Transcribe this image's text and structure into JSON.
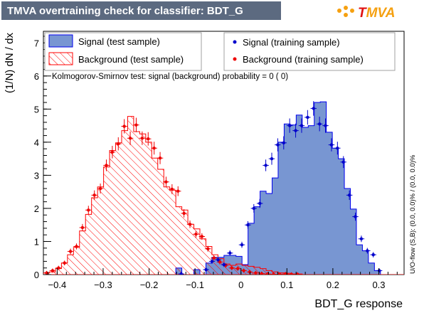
{
  "title": "TMVA overtraining check for classifier: BDT_G",
  "logo": {
    "text": "TMVA"
  },
  "overflow_note": "U/O-flow (S,B): (0.0, 0.0)% / (0.0, 0.0)%",
  "ks_text": "Kolmogorov-Smirnov test: signal (background) probability =     0 (    0)",
  "legend": {
    "signal_test": "Signal (test sample)",
    "background_test": "Background (test sample)",
    "signal_train": "Signal (training sample)",
    "background_train": "Background (training sample)"
  },
  "colors": {
    "signal_fill": "#7896d2",
    "signal_line": "#0000ee",
    "background_hatch": "#ff0000",
    "background_points": "#ee0000",
    "signal_points": "#0000cc",
    "title_bg": "#5c6a80"
  },
  "chart_data": {
    "type": "histogram",
    "title": "TMVA overtraining check for classifier: BDT_G",
    "xlabel": "BDT_G response",
    "ylabel": "(1/N) dN / dx",
    "xlim": [
      -0.43,
      0.355
    ],
    "ylim": [
      0,
      7.35
    ],
    "xticks": [
      -0.4,
      -0.3,
      -0.2,
      -0.1,
      0,
      0.1,
      0.2,
      0.3
    ],
    "xtick_labels": [
      "−0.4",
      "−0.3",
      "−0.2",
      "−0.1",
      "0",
      "0.1",
      "0.2",
      "0.3"
    ],
    "yticks": [
      0,
      1,
      2,
      3,
      4,
      5,
      6,
      7
    ],
    "ytick_labels": [
      "0",
      "1",
      "2",
      "3",
      "4",
      "5",
      "6",
      "7"
    ],
    "bin_edges_start": -0.43,
    "bin_width": 0.0131,
    "series": [
      {
        "name": "Signal (test sample)",
        "kind": "filled-histogram",
        "values": [
          0,
          0,
          0,
          0,
          0,
          0,
          0,
          0,
          0,
          0,
          0,
          0,
          0,
          0,
          0,
          0,
          0,
          0,
          0,
          0,
          0,
          0,
          0.2,
          0,
          0,
          0.15,
          0,
          0.35,
          0.52,
          0.52,
          0.58,
          0.58,
          0.55,
          0.3,
          1.55,
          2.05,
          2.52,
          2.45,
          2.92,
          4.0,
          4.55,
          4.52,
          4.82,
          4.45,
          4.5,
          5.2,
          5.22,
          4.3,
          3.82,
          3.5,
          2.6,
          1.98,
          0.9,
          0.72,
          0.35,
          0.12,
          0,
          0,
          0,
          0
        ]
      },
      {
        "name": "Background (test sample)",
        "kind": "hatched-histogram",
        "values": [
          0.05,
          0.08,
          0.18,
          0.35,
          0.6,
          0.82,
          1.32,
          1.82,
          2.32,
          2.65,
          3.25,
          3.75,
          3.98,
          4.35,
          4.78,
          4.32,
          4.25,
          4.0,
          3.52,
          3.18,
          2.65,
          2.55,
          2.05,
          1.95,
          1.52,
          1.38,
          1.08,
          0.85,
          0.6,
          0.48,
          0.32,
          0.28,
          0.32,
          0.28,
          0.25,
          0.22,
          0.18,
          0.12,
          0.08,
          0.05,
          0.04,
          0.02,
          0.02,
          0,
          0,
          0,
          0,
          0,
          0,
          0,
          0,
          0,
          0,
          0,
          0,
          0,
          0,
          0,
          0,
          0
        ]
      },
      {
        "name": "Signal (training sample)",
        "kind": "points",
        "x": [
          -0.13,
          -0.076,
          -0.063,
          -0.05,
          -0.037,
          -0.024,
          0.002,
          0.015,
          0.028,
          0.041,
          0.054,
          0.067,
          0.08,
          0.093,
          0.106,
          0.119,
          0.132,
          0.145,
          0.158,
          0.171,
          0.184,
          0.197,
          0.21,
          0.223,
          0.236,
          0.249,
          0.262,
          0.275,
          0.288,
          0.301
        ],
        "values": [
          0.02,
          0.15,
          0.4,
          0.45,
          0.3,
          0.65,
          0.9,
          1.5,
          2.0,
          2.15,
          3.3,
          3.5,
          3.92,
          3.98,
          4.5,
          4.35,
          4.5,
          4.75,
          5.02,
          4.55,
          4.5,
          3.92,
          3.82,
          3.4,
          2.4,
          1.75,
          1.08,
          0.72,
          0.6,
          0.12
        ]
      },
      {
        "name": "Background (training sample)",
        "kind": "points",
        "x": [
          -0.423,
          -0.41,
          -0.397,
          -0.384,
          -0.371,
          -0.358,
          -0.345,
          -0.332,
          -0.319,
          -0.306,
          -0.293,
          -0.28,
          -0.267,
          -0.254,
          -0.241,
          -0.228,
          -0.215,
          -0.202,
          -0.189,
          -0.176,
          -0.163,
          -0.15,
          -0.137,
          -0.124,
          -0.111,
          -0.098,
          -0.085,
          -0.072,
          -0.059,
          -0.046,
          -0.033,
          -0.02,
          -0.007,
          0.006,
          0.019,
          0.032,
          0.045,
          0.058,
          0.071,
          0.084,
          0.097,
          0.11,
          0.123
        ],
        "values": [
          0.05,
          0.12,
          0.2,
          0.35,
          0.7,
          0.85,
          1.42,
          1.95,
          2.4,
          2.6,
          3.3,
          3.7,
          3.95,
          4.48,
          4.12,
          4.52,
          4.12,
          4.1,
          3.82,
          3.52,
          2.8,
          2.58,
          2.52,
          1.85,
          1.52,
          1.22,
          1.15,
          0.78,
          0.5,
          0.38,
          0.28,
          0.2,
          0.18,
          0.12,
          0.08,
          0.05,
          0.03,
          0.02,
          0.01,
          0.01,
          0.02,
          0.01,
          0.01
        ]
      }
    ],
    "legend_position": "top"
  }
}
